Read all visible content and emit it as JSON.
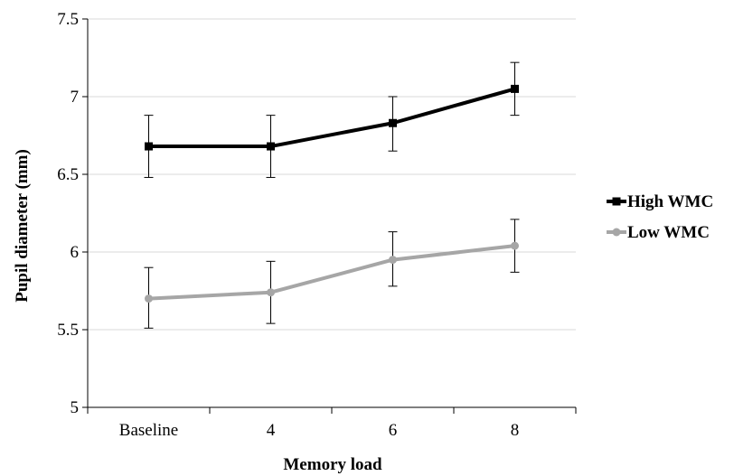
{
  "chart_data": {
    "type": "line",
    "title": "",
    "xlabel": "Memory load",
    "ylabel": "Pupil diameter (mm)",
    "categories": [
      "Baseline",
      "4",
      "6",
      "8"
    ],
    "ylim": [
      5,
      7.5
    ],
    "yticks": [
      5,
      5.5,
      6,
      6.5,
      7,
      7.5
    ],
    "ytick_labels": [
      "5",
      "5.5",
      "6",
      "6.5",
      "7",
      "7.5"
    ],
    "grid": "horizontal",
    "legend_position": "right",
    "series": [
      {
        "name": "High WMC",
        "color": "#000000",
        "marker": "square",
        "values": [
          6.68,
          6.68,
          6.83,
          7.05
        ],
        "error_low": [
          6.48,
          6.48,
          6.65,
          6.88
        ],
        "error_high": [
          6.88,
          6.88,
          7.0,
          7.22
        ]
      },
      {
        "name": "Low WMC",
        "color": "#a6a6a6",
        "marker": "circle",
        "values": [
          5.7,
          5.74,
          5.95,
          6.04
        ],
        "error_low": [
          5.51,
          5.54,
          5.78,
          5.87
        ],
        "error_high": [
          5.9,
          5.94,
          6.13,
          6.21
        ]
      }
    ]
  }
}
